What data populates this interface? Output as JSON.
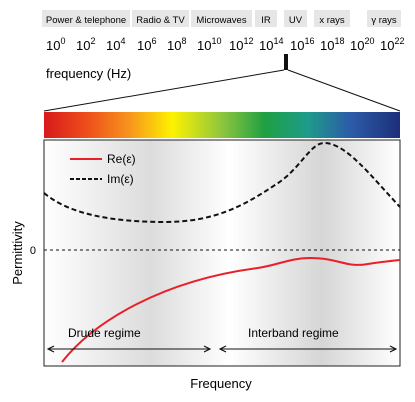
{
  "spectrum": {
    "bands": [
      {
        "label": "Power & telephone"
      },
      {
        "label": "Radio & TV"
      },
      {
        "label": "Microwaves"
      },
      {
        "label": "IR"
      },
      {
        "label": "UV"
      },
      {
        "label": "x rays"
      },
      {
        "label": "γ rays"
      }
    ],
    "tick_base": "10",
    "tick_exponents": [
      "0",
      "2",
      "4",
      "6",
      "8",
      "10",
      "12",
      "14",
      "16",
      "18",
      "20",
      "22"
    ],
    "axis_label": "frequency (Hz)"
  },
  "plot": {
    "legend": [
      {
        "label": "Re(ε)",
        "color": "#e8202a",
        "style": "solid"
      },
      {
        "label": "Im(ε)",
        "color": "#111111",
        "style": "dashed"
      }
    ],
    "zero_label": "0",
    "ylabel": "Permittivity",
    "xlabel": "Frequency",
    "regimes": [
      {
        "label": "Drude regime"
      },
      {
        "label": "Interband regime"
      }
    ]
  },
  "colors": {
    "re_curve": "#e8202a",
    "im_curve": "#111111",
    "band_box": "#e6e6e6"
  }
}
